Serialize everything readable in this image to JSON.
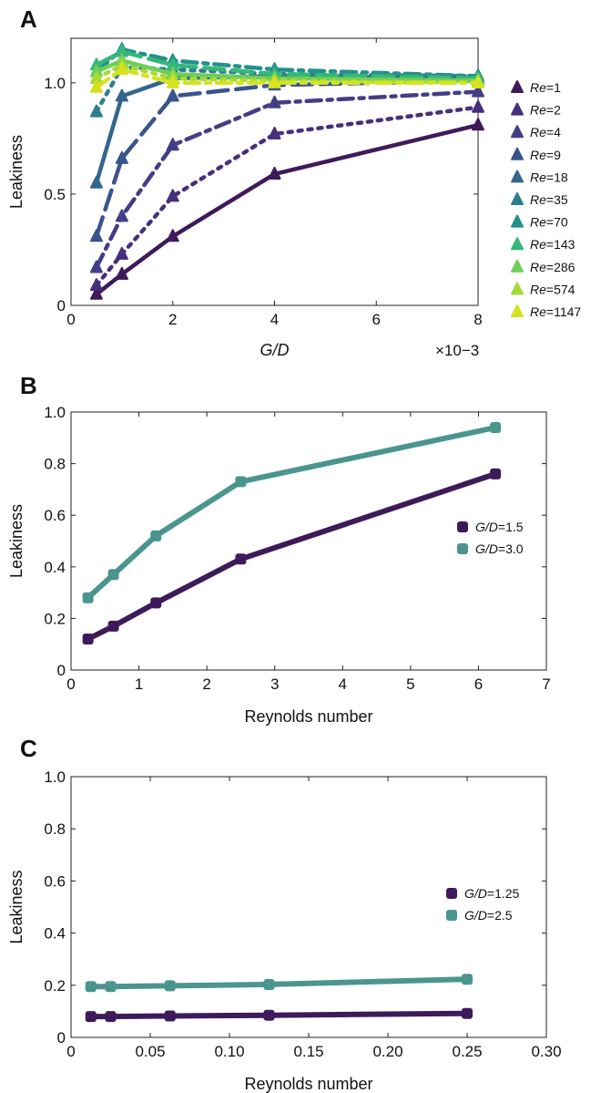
{
  "chart_data": [
    {
      "panel": "A",
      "type": "line",
      "xlabel": "G/D",
      "xlabel_italic": true,
      "x_multiplier_label": "×10−3",
      "ylabel": "Leakiness",
      "xlim": [
        0,
        8
      ],
      "ylim": [
        0,
        1.2
      ],
      "xticks": [
        0,
        2,
        4,
        6,
        8
      ],
      "yticks": [
        0,
        0.5,
        1.0
      ],
      "ytick_labels": [
        "0",
        "0.5",
        "1.0"
      ],
      "x": [
        0.5,
        1,
        2,
        4,
        8
      ],
      "legend_position": "outside-right",
      "legend_prefix": "Re",
      "series": [
        {
          "name": "=1",
          "color": "#3f1a5a",
          "dash": "solid",
          "values": [
            0.05,
            0.14,
            0.31,
            0.59,
            0.81
          ]
        },
        {
          "name": "=2",
          "color": "#472f7d",
          "dash": "dot",
          "values": [
            0.09,
            0.23,
            0.49,
            0.77,
            0.89
          ]
        },
        {
          "name": "=4",
          "color": "#433e85",
          "dash": "dashdot",
          "values": [
            0.17,
            0.4,
            0.72,
            0.91,
            0.96
          ]
        },
        {
          "name": "=9",
          "color": "#3a548c",
          "dash": "dash",
          "values": [
            0.31,
            0.66,
            0.94,
            0.99,
            1.01
          ]
        },
        {
          "name": "=18",
          "color": "#33668d",
          "dash": "solid",
          "values": [
            0.55,
            0.94,
            1.02,
            1.03,
            1.02
          ]
        },
        {
          "name": "=35",
          "color": "#2c7e8e",
          "dash": "dot",
          "values": [
            0.87,
            1.07,
            1.06,
            1.04,
            1.03
          ]
        },
        {
          "name": "=70",
          "color": "#21918c",
          "dash": "dashdot",
          "values": [
            1.05,
            1.15,
            1.1,
            1.06,
            1.03
          ]
        },
        {
          "name": "=143",
          "color": "#35b779",
          "dash": "dash",
          "values": [
            1.08,
            1.14,
            1.08,
            1.04,
            1.02
          ]
        },
        {
          "name": "=286",
          "color": "#6ece58",
          "dash": "solid",
          "values": [
            1.05,
            1.1,
            1.04,
            1.02,
            1.01
          ]
        },
        {
          "name": "=574",
          "color": "#a5db36",
          "dash": "dot",
          "values": [
            1.02,
            1.08,
            1.02,
            1.01,
            1.0
          ]
        },
        {
          "name": "=1147",
          "color": "#d6e21f",
          "dash": "dashdot",
          "values": [
            0.98,
            1.06,
            1.0,
            1.0,
            1.0
          ]
        }
      ]
    },
    {
      "panel": "B",
      "type": "line",
      "xlabel": "Reynolds number",
      "ylabel": "Leakiness",
      "xlim": [
        0,
        7
      ],
      "ylim": [
        0,
        1.0
      ],
      "xticks": [
        0,
        1,
        2,
        3,
        4,
        5,
        6,
        7
      ],
      "yticks": [
        0,
        0.2,
        0.4,
        0.6,
        0.8,
        1.0
      ],
      "ytick_labels": [
        "0",
        "0.2",
        "0.4",
        "0.6",
        "0.8",
        "1.0"
      ],
      "legend_position": "center-right",
      "legend_prefix": "G/D",
      "series": [
        {
          "name": "=1.5",
          "color": "#3f1a5a",
          "x": [
            0.25,
            0.625,
            1.25,
            2.5,
            6.25
          ],
          "values": [
            0.12,
            0.17,
            0.26,
            0.43,
            0.76
          ]
        },
        {
          "name": "=3.0",
          "color": "#4a958e",
          "x": [
            0.25,
            0.625,
            1.25,
            2.5,
            6.25
          ],
          "values": [
            0.28,
            0.37,
            0.52,
            0.73,
            0.94
          ]
        }
      ]
    },
    {
      "panel": "C",
      "type": "line",
      "xlabel": "Reynolds number",
      "ylabel": "Leakiness",
      "xlim": [
        0,
        0.3
      ],
      "ylim": [
        0,
        1.0
      ],
      "xticks": [
        0,
        0.05,
        0.1,
        0.15,
        0.2,
        0.25,
        0.3
      ],
      "xtick_labels": [
        "0",
        "0.05",
        "0.10",
        "0.15",
        "0.20",
        "0.25",
        "0.30"
      ],
      "yticks": [
        0,
        0.2,
        0.4,
        0.6,
        0.8,
        1.0
      ],
      "ytick_labels": [
        "0",
        "0.2",
        "0.4",
        "0.6",
        "0.8",
        "1.0"
      ],
      "legend_position": "center-right",
      "legend_prefix": "G/D",
      "series": [
        {
          "name": "=1.25",
          "color": "#3f1a5a",
          "x": [
            0.0125,
            0.025,
            0.0625,
            0.125,
            0.25
          ],
          "values": [
            0.08,
            0.08,
            0.082,
            0.085,
            0.092
          ]
        },
        {
          "name": "=2.5",
          "color": "#4a958e",
          "x": [
            0.0125,
            0.025,
            0.0625,
            0.125,
            0.25
          ],
          "values": [
            0.195,
            0.195,
            0.198,
            0.203,
            0.223
          ]
        }
      ]
    }
  ]
}
